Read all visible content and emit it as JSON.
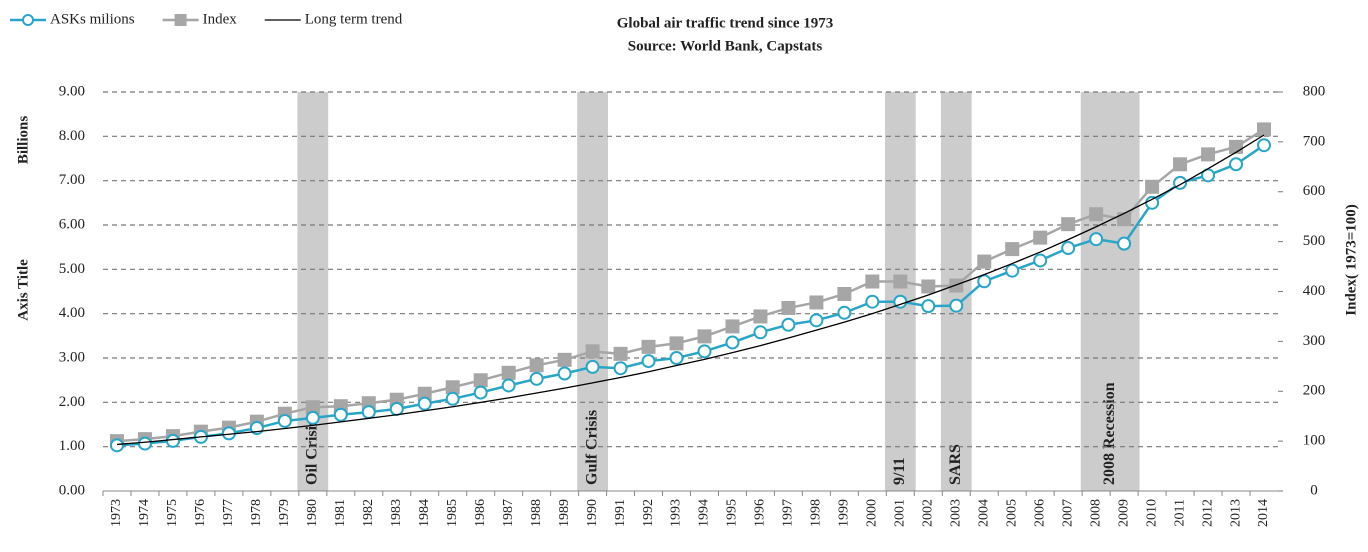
{
  "chart_data": {
    "type": "line",
    "title": "Global air traffic trend since 1973",
    "subtitle": "Source: World Bank, Capstats",
    "y_label_unit": "Billions",
    "y_label": "Axis Title",
    "y2_label": "Index( 1973=100)",
    "categories": [
      "1973",
      "1974",
      "1975",
      "1976",
      "1977",
      "1978",
      "1979",
      "1980",
      "1981",
      "1982",
      "1983",
      "1984",
      "1985",
      "1986",
      "1987",
      "1988",
      "1989",
      "1990",
      "1991",
      "1992",
      "1993",
      "1994",
      "1995",
      "1996",
      "1997",
      "1998",
      "1999",
      "2000",
      "2001",
      "2002",
      "2003",
      "2004",
      "2005",
      "2006",
      "2007",
      "2008",
      "2009",
      "2010",
      "2011",
      "2012",
      "2013",
      "2014"
    ],
    "series": [
      {
        "name": "ASKs milions",
        "color": "#2aa5c8",
        "marker": "circle",
        "values": [
          1.03,
          1.07,
          1.13,
          1.22,
          1.3,
          1.42,
          1.58,
          1.65,
          1.72,
          1.78,
          1.85,
          1.97,
          2.08,
          2.22,
          2.38,
          2.53,
          2.65,
          2.8,
          2.77,
          2.93,
          3.0,
          3.15,
          3.35,
          3.58,
          3.75,
          3.85,
          4.02,
          4.27,
          4.27,
          4.17,
          4.18,
          4.73,
          4.97,
          5.2,
          5.48,
          5.68,
          5.58,
          6.5,
          6.95,
          7.12,
          7.37,
          7.8
        ]
      },
      {
        "name": "Index",
        "color": "#a6a6a6",
        "marker": "square",
        "axis": "y2",
        "values": [
          100,
          104,
          110,
          119,
          127,
          139,
          155,
          168,
          170,
          176,
          183,
          195,
          208,
          222,
          237,
          252,
          263,
          280,
          275,
          289,
          296,
          310,
          330,
          350,
          367,
          378,
          395,
          420,
          420,
          410,
          412,
          460,
          485,
          508,
          535,
          555,
          545,
          610,
          655,
          675,
          690,
          725
        ]
      },
      {
        "name": "Long term trend",
        "color": "#000000",
        "marker": "none",
        "values": [
          1.05,
          1.1,
          1.16,
          1.22,
          1.28,
          1.34,
          1.41,
          1.48,
          1.56,
          1.64,
          1.72,
          1.81,
          1.9,
          2.0,
          2.1,
          2.21,
          2.32,
          2.44,
          2.56,
          2.69,
          2.83,
          2.97,
          3.12,
          3.28,
          3.45,
          3.63,
          3.81,
          4.0,
          4.21,
          4.42,
          4.65,
          4.88,
          5.13,
          5.39,
          5.67,
          5.96,
          6.26,
          6.58,
          6.91,
          7.27,
          7.64,
          8.03
        ]
      }
    ],
    "events": [
      {
        "label": "Oil Crisis",
        "from": "1980",
        "to": "1980"
      },
      {
        "label": "Gulf Crisis",
        "from": "1990",
        "to": "1990"
      },
      {
        "label": "9/11",
        "from": "2001",
        "to": "2001"
      },
      {
        "label": "SARS",
        "from": "2003",
        "to": "2003"
      },
      {
        "label": "2008 Recession",
        "from": "2008",
        "to": "2009"
      }
    ],
    "ylim": [
      0,
      9
    ],
    "yticks": [
      {
        "value": 0,
        "label": "0.00"
      },
      {
        "value": 1,
        "label": "1.00"
      },
      {
        "value": 2,
        "label": "2.00"
      },
      {
        "value": 3,
        "label": "3.00"
      },
      {
        "value": 4,
        "label": "4.00"
      },
      {
        "value": 5,
        "label": "5.00"
      },
      {
        "value": 6,
        "label": "6.00"
      },
      {
        "value": 7,
        "label": "7.00"
      },
      {
        "value": 8,
        "label": "8.00"
      },
      {
        "value": 9,
        "label": "9.00"
      }
    ],
    "y2lim": [
      0,
      800
    ],
    "y2ticks": [
      0,
      100,
      200,
      300,
      400,
      500,
      600,
      700,
      800
    ],
    "grid": true,
    "legend": "top-left"
  }
}
